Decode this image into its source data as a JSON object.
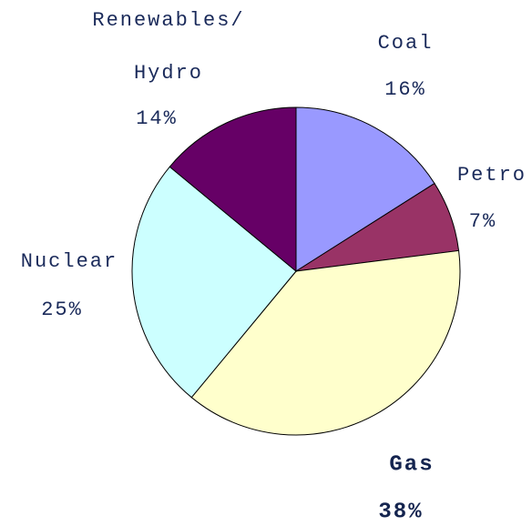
{
  "chart_data": {
    "type": "pie",
    "categories": [
      "Coal",
      "Petro",
      "Gas",
      "Nuclear",
      "Renewables/Hydro"
    ],
    "values": [
      16,
      7,
      38,
      25,
      14
    ],
    "value_labels": [
      "16%",
      "7%",
      "38%",
      "25%",
      "14%"
    ],
    "colors": [
      "#9999ff",
      "#993366",
      "#ffffcc",
      "#ccffff",
      "#660066"
    ]
  }
}
